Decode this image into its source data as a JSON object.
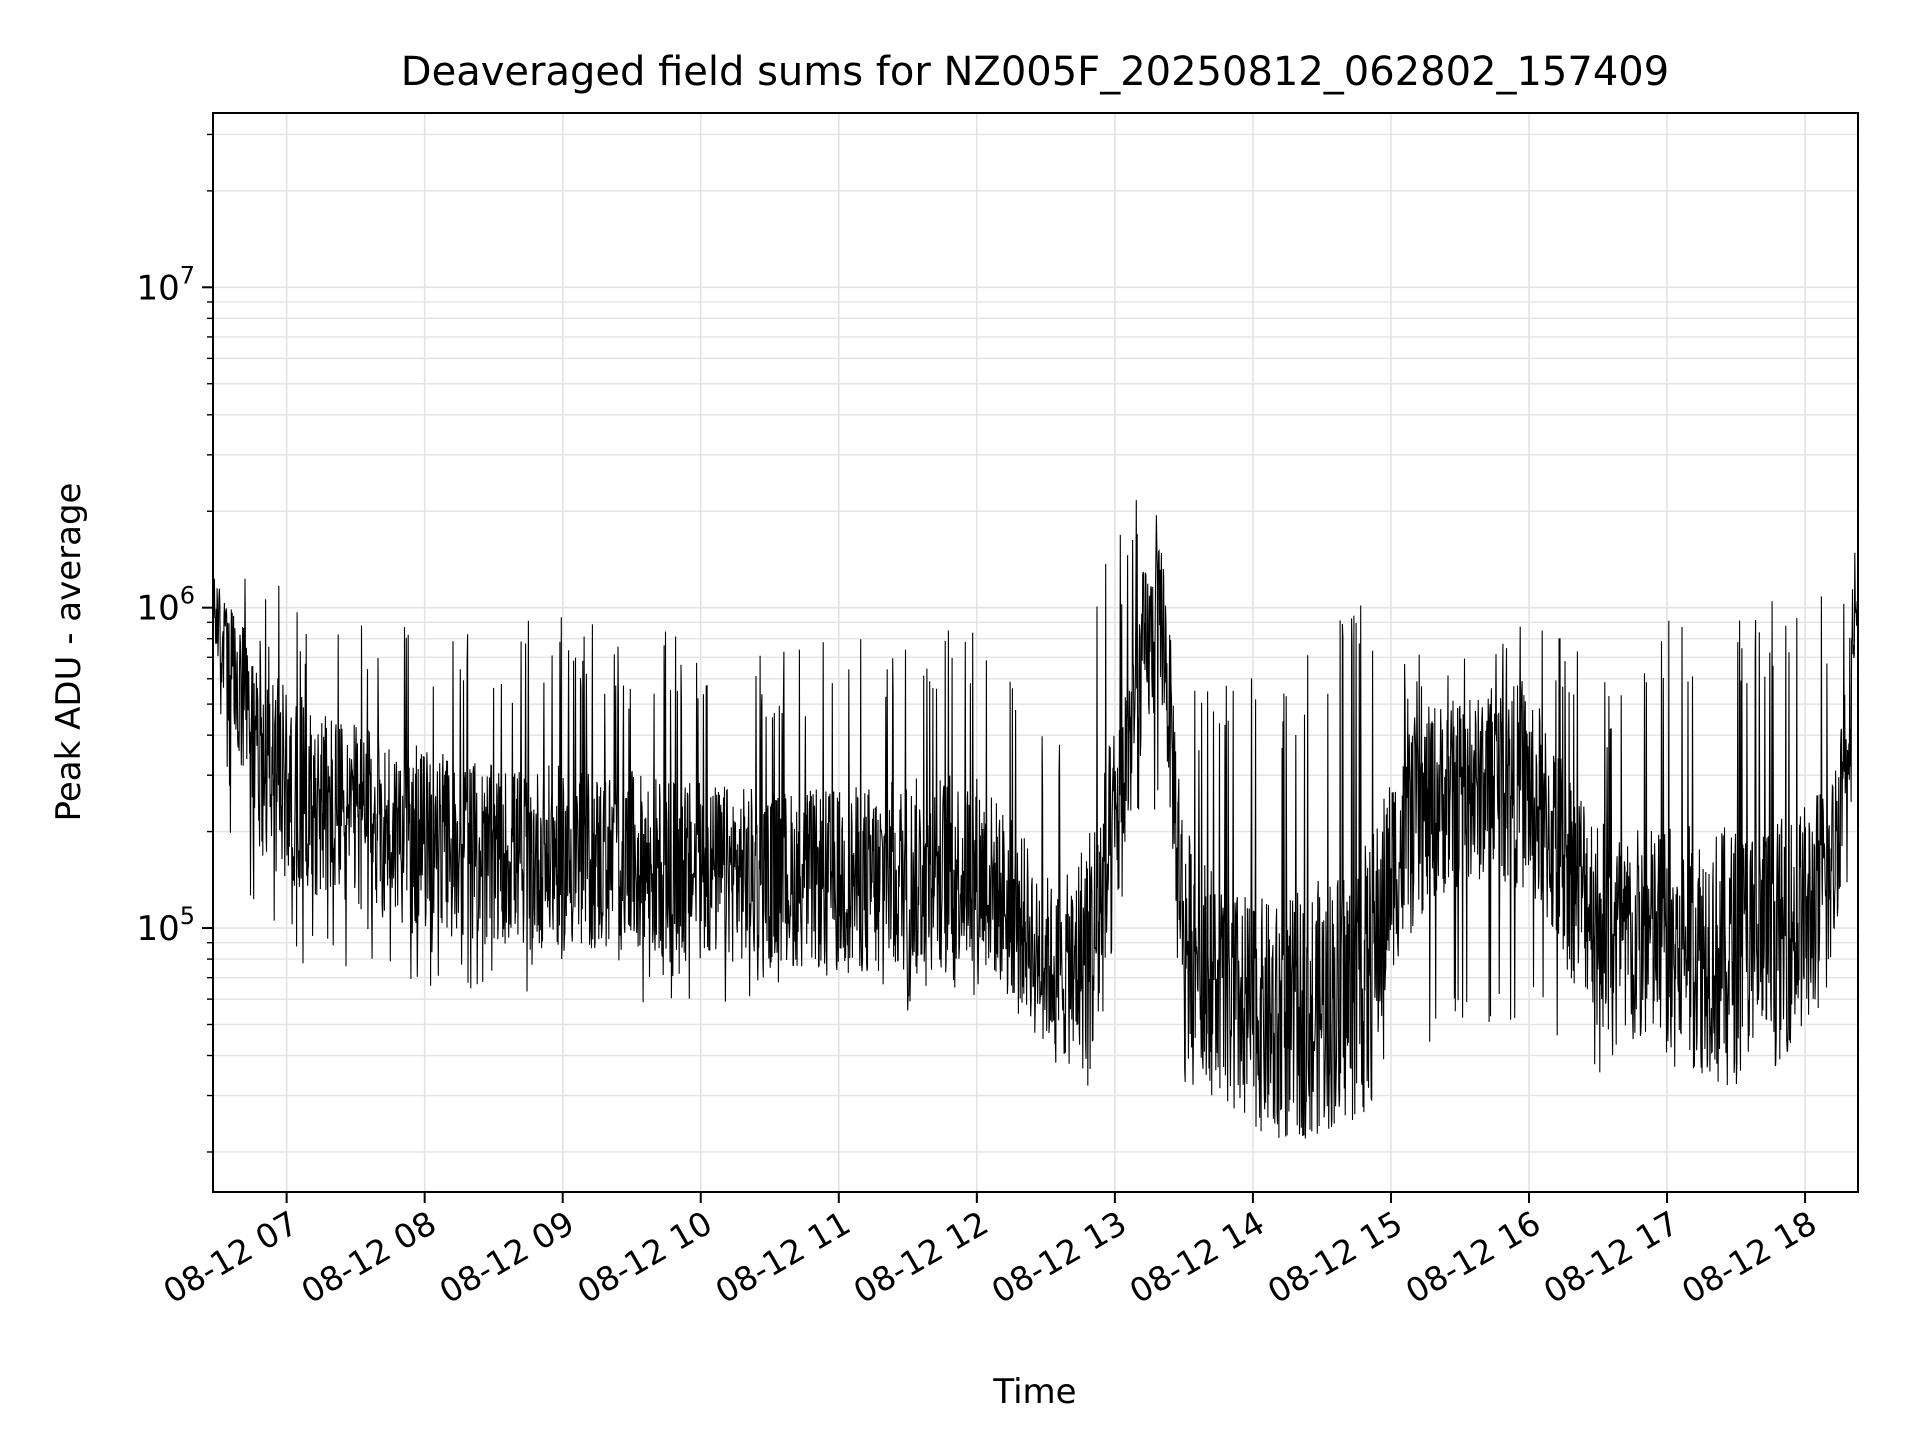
{
  "chart_data": {
    "type": "line",
    "title": "Deaveraged field sums for NZ005F_20250812_062802_157409",
    "xlabel": "Time",
    "ylabel": "Peak ADU - average",
    "x_ticks": [
      "08-12 07",
      "08-12 08",
      "08-12 09",
      "08-12 10",
      "08-12 11",
      "08-12 12",
      "08-12 13",
      "08-12 14",
      "08-12 15",
      "08-12 16",
      "08-12 17",
      "08-12 18"
    ],
    "y_ticks": [
      {
        "base": "10",
        "exp": "5",
        "value": 100000
      },
      {
        "base": "10",
        "exp": "6",
        "value": 1000000
      },
      {
        "base": "10",
        "exp": "7",
        "value": 10000000
      }
    ],
    "yscale": "log",
    "xlim": [
      "2025-08-12 06:28",
      "2025-08-12 18:23"
    ],
    "ylim": [
      15000,
      35000000
    ],
    "grid": true,
    "line_color": "#000000",
    "series_envelope": {
      "x_hours": [
        6.47,
        6.6,
        6.8,
        7.0,
        7.5,
        8.0,
        8.5,
        9.0,
        9.5,
        10.0,
        10.5,
        11.0,
        11.5,
        12.0,
        12.3,
        12.6,
        12.85,
        13.0,
        13.2,
        13.35,
        13.5,
        13.8,
        14.2,
        14.6,
        14.85,
        15.0,
        15.3,
        15.6,
        15.9,
        16.0,
        16.3,
        16.6,
        17.0,
        17.4,
        17.8,
        18.0,
        18.2,
        18.3,
        18.38
      ],
      "median": [
        1000000,
        600000,
        350000,
        280000,
        220000,
        190000,
        170000,
        165000,
        160000,
        150000,
        145000,
        140000,
        145000,
        155000,
        110000,
        70000,
        90000,
        200000,
        700000,
        900000,
        100000,
        60000,
        50000,
        60000,
        70000,
        150000,
        250000,
        270000,
        280000,
        270000,
        150000,
        100000,
        90000,
        85000,
        90000,
        110000,
        150000,
        400000,
        900000
      ],
      "low": [
        700000,
        200000,
        90000,
        85000,
        85000,
        80000,
        78000,
        75000,
        72000,
        70000,
        68000,
        65000,
        65000,
        70000,
        55000,
        40000,
        35000,
        80000,
        250000,
        300000,
        40000,
        30000,
        25000,
        28000,
        35000,
        45000,
        50000,
        60000,
        60000,
        55000,
        45000,
        42000,
        40000,
        38000,
        42000,
        50000,
        80000,
        150000,
        600000
      ],
      "high": [
        1500000,
        1200000,
        1000000,
        900000,
        800000,
        700000,
        650000,
        700000,
        650000,
        600000,
        550000,
        600000,
        700000,
        700000,
        450000,
        300000,
        900000,
        1200000,
        2000000,
        2300000,
        500000,
        450000,
        450000,
        650000,
        1000000,
        500000,
        550000,
        550000,
        700000,
        700000,
        600000,
        450000,
        700000,
        750000,
        800000,
        750000,
        900000,
        1200000,
        1500000
      ]
    }
  }
}
